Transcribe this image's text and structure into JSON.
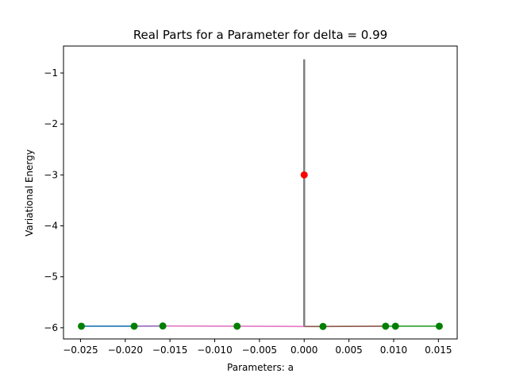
{
  "chart_data": {
    "type": "line",
    "title": "Real Parts for a Parameter for delta = 0.99",
    "xlabel": "Parameters: a",
    "ylabel": "Variational Energy",
    "xlim": [
      -0.0269,
      0.0171
    ],
    "ylim": [
      -6.22,
      -0.47
    ],
    "xticks": [
      -0.025,
      -0.02,
      -0.015,
      -0.01,
      -0.005,
      0.0,
      0.005,
      0.01,
      0.015
    ],
    "xtick_labels": [
      "−0.025",
      "−0.020",
      "−0.015",
      "−0.010",
      "−0.005",
      "0.000",
      "0.005",
      "0.010",
      "0.015"
    ],
    "yticks": [
      -1,
      -2,
      -3,
      -4,
      -5,
      -6
    ],
    "ytick_labels": [
      "−1",
      "−2",
      "−3",
      "−4",
      "−5",
      "−6"
    ],
    "grid": false,
    "series": [
      {
        "color": "#1f77b4",
        "x": [
          -0.0249,
          -0.019
        ],
        "y": [
          -5.97,
          -5.97
        ]
      },
      {
        "color": "#9467bd",
        "x": [
          -0.019,
          -0.0158
        ],
        "y": [
          -5.97,
          -5.965
        ]
      },
      {
        "color": "#e377c2",
        "x": [
          -0.0158,
          -0.0075,
          0.0
        ],
        "y": [
          -5.965,
          -5.97,
          -5.975
        ]
      },
      {
        "color": "#8c564b",
        "x": [
          0.0,
          0.0021,
          0.0091
        ],
        "y": [
          -5.975,
          -5.975,
          -5.97
        ]
      },
      {
        "color": "#2ca02c",
        "x": [
          0.0091,
          0.0102,
          0.0151
        ],
        "y": [
          -5.97,
          -5.97,
          -5.97
        ]
      },
      {
        "color": "#7f7f7f",
        "x": [
          0.0,
          0.0
        ],
        "y": [
          -5.975,
          -0.73
        ]
      }
    ],
    "points": [
      {
        "x": -0.0249,
        "y": -5.97,
        "color": "#008000"
      },
      {
        "x": -0.019,
        "y": -5.97,
        "color": "#008000"
      },
      {
        "x": -0.0158,
        "y": -5.965,
        "color": "#008000"
      },
      {
        "x": -0.0075,
        "y": -5.97,
        "color": "#008000"
      },
      {
        "x": 0.0021,
        "y": -5.975,
        "color": "#008000"
      },
      {
        "x": 0.0091,
        "y": -5.97,
        "color": "#008000"
      },
      {
        "x": 0.0102,
        "y": -5.97,
        "color": "#008000"
      },
      {
        "x": 0.0151,
        "y": -5.97,
        "color": "#008000"
      },
      {
        "x": 0.0,
        "y": -3.0,
        "color": "#ff0000"
      }
    ]
  }
}
